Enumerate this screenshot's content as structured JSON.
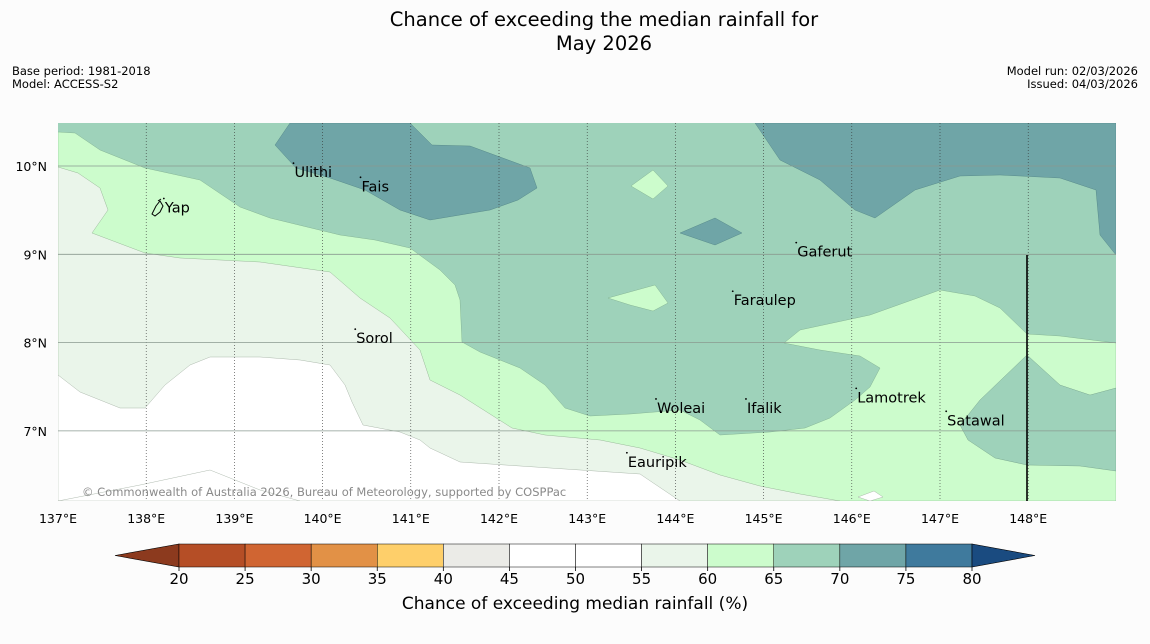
{
  "title": {
    "line1": "Chance of exceeding the median rainfall for",
    "line2": "May 2026"
  },
  "meta_left": {
    "base_period": "Base period: 1981-2018",
    "model": "Model: ACCESS-S2"
  },
  "meta_right": {
    "model_run": "Model run: 02/03/2026",
    "issued": "Issued: 04/03/2026"
  },
  "copyright": "© Commonwealth of Australia 2026, Bureau of Meteorology, supported by COSPPac",
  "lon_ticks": [
    "137°E",
    "138°E",
    "139°E",
    "140°E",
    "141°E",
    "142°E",
    "143°E",
    "144°E",
    "145°E",
    "146°E",
    "147°E",
    "148°E"
  ],
  "lat_ticks": [
    "10°N",
    "9°N",
    "8°N",
    "7°N"
  ],
  "places": [
    {
      "name": "Ulithi",
      "lon": 139.67,
      "lat": 9.93
    },
    {
      "name": "Fais",
      "lon": 140.43,
      "lat": 9.77
    },
    {
      "name": "Yap",
      "lon": 138.2,
      "lat": 9.53
    },
    {
      "name": "Gaferut",
      "lon": 145.37,
      "lat": 9.03
    },
    {
      "name": "Faraulep",
      "lon": 144.65,
      "lat": 8.48
    },
    {
      "name": "Sorol",
      "lon": 140.37,
      "lat": 8.05
    },
    {
      "name": "Lamotrek",
      "lon": 146.05,
      "lat": 7.38
    },
    {
      "name": "Woleai",
      "lon": 143.78,
      "lat": 7.26
    },
    {
      "name": "Ifalik",
      "lon": 144.8,
      "lat": 7.26
    },
    {
      "name": "Satawal",
      "lon": 147.07,
      "lat": 7.12
    },
    {
      "name": "Eauripik",
      "lon": 143.45,
      "lat": 6.65
    }
  ],
  "legend": {
    "label": "Chance of exceeding median rainfall (%)",
    "ticks": [
      "20",
      "25",
      "30",
      "35",
      "40",
      "45",
      "50",
      "55",
      "60",
      "65",
      "70",
      "75",
      "80"
    ],
    "colors": [
      "#8c3a1e",
      "#b54e26",
      "#d06532",
      "#e29146",
      "#fecf6a",
      "#ebebe7",
      "#ffffff",
      "#ffffff",
      "#eaf5ea",
      "#ccfccc",
      "#9ed2ba",
      "#6fa5a7",
      "#3f7a9d",
      "#1a4b80"
    ]
  }
}
